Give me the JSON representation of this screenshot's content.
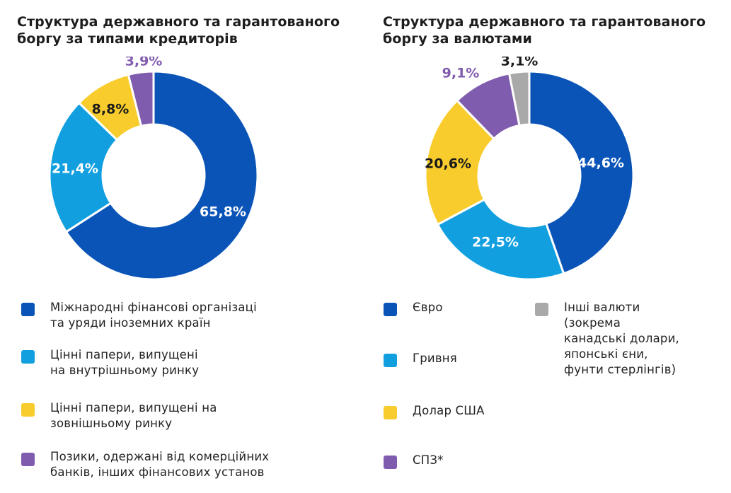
{
  "colors": {
    "blue_dark": "#0a54b8",
    "blue_light": "#119fe0",
    "yellow": "#f8cc2c",
    "purple": "#805cae",
    "gray": "#a9a9a9"
  },
  "chart_data": [
    {
      "type": "pie",
      "style": "donut",
      "title": "Структура державного та гарантованого боргу за типами кредиторів",
      "series": [
        {
          "label": "Міжнародні фінансові організації та уряди іноземних країн",
          "value": 65.8,
          "value_label": "65,8%",
          "color": "#0a54b8",
          "label_color": "#ffffff"
        },
        {
          "label": "Цінні папери, випущені на внутрішньому ринку",
          "value": 21.4,
          "value_label": "21,4%",
          "color": "#119fe0",
          "label_color": "#ffffff"
        },
        {
          "label": "Цінні папери, випущені на зовнішньому ринку",
          "value": 8.8,
          "value_label": "8,8%",
          "color": "#f8cc2c",
          "label_color": "#1a1a1a"
        },
        {
          "label": "Позики, одержані від комерційних банків, інших фінансових установ",
          "value": 3.9,
          "value_label": "3,9%",
          "color": "#805cae",
          "label_color": "#805cae"
        }
      ],
      "legend_placement": "bottom"
    },
    {
      "type": "pie",
      "style": "donut",
      "title": "Структура державного та гарантованого боргу за валютами",
      "series": [
        {
          "label": "Євро",
          "value": 44.6,
          "value_label": "44,6%",
          "color": "#0a54b8",
          "label_color": "#ffffff"
        },
        {
          "label": "Гривня",
          "value": 22.5,
          "value_label": "22,5%",
          "color": "#119fe0",
          "label_color": "#ffffff"
        },
        {
          "label": "Долар США",
          "value": 20.6,
          "value_label": "20,6%",
          "color": "#f8cc2c",
          "label_color": "#1a1a1a"
        },
        {
          "label": "СПЗ*",
          "value": 9.1,
          "value_label": "9,1%",
          "color": "#805cae",
          "label_color": "#805cae"
        },
        {
          "label": "Інші валюти (зокрема канадські долари, японські єни, фунти стерлінгів)",
          "value": 3.1,
          "value_label": "3,1%",
          "color": "#a9a9a9",
          "label_color": "#1a1a1a"
        }
      ],
      "legend_placement": "bottom"
    }
  ],
  "legend_left": [
    {
      "text": "Міжнародні фінансові організаці\nта уряди іноземних країн",
      "color": "#0a54b8"
    },
    {
      "text": "Цінні папери, випущені\nна внутрішньому ринку",
      "color": "#119fe0"
    },
    {
      "text": "Цінні папери, випущені на\nзовнішньому ринку",
      "color": "#f8cc2c"
    },
    {
      "text": "Позики, одержані від комерційних\nбанків, інших фінансових установ",
      "color": "#805cae"
    }
  ],
  "legend_right": [
    {
      "text": "Євро",
      "color": "#0a54b8"
    },
    {
      "text": "Гривня",
      "color": "#119fe0"
    },
    {
      "text": "Долар США",
      "color": "#f8cc2c"
    },
    {
      "text": "СПЗ*",
      "color": "#805cae"
    },
    {
      "text": "Інші валюти\n(зокрема\nканадські долари,\nяпонські єни,\nфунти стерлінгів)",
      "color": "#a9a9a9"
    }
  ]
}
